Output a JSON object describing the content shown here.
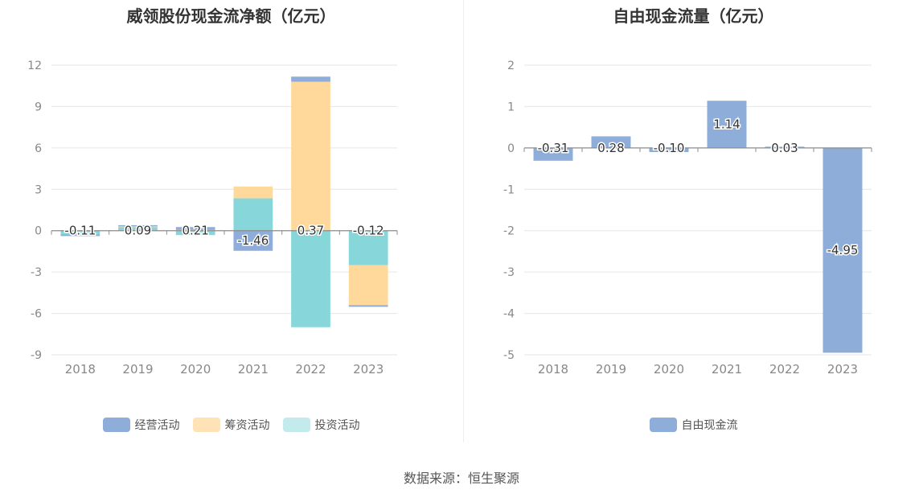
{
  "source": "数据来源：恒生聚源",
  "chart_data": [
    {
      "type": "bar",
      "stacked": true,
      "title": "威领股份现金流净额（亿元）",
      "categories": [
        "2018",
        "2019",
        "2020",
        "2021",
        "2022",
        "2023"
      ],
      "ylim": [
        -9,
        12
      ],
      "yticks": [
        12,
        9,
        6,
        3,
        0,
        -3,
        -6,
        -9
      ],
      "grid": true,
      "legend_position": "bottom",
      "series": [
        {
          "name": "经营活动",
          "color": "#8eadd9",
          "values": [
            -0.11,
            0.09,
            0.21,
            -1.46,
            0.37,
            -0.12
          ],
          "labels": [
            "-0.11",
            "0.09",
            "0.21",
            "-1.46",
            "0.37",
            "-0.12"
          ]
        },
        {
          "name": "筹资活动",
          "color": "#ffd99b",
          "values": [
            0.02,
            0.05,
            0.05,
            0.85,
            10.8,
            -2.9
          ]
        },
        {
          "name": "投资活动",
          "color": "#86d6da",
          "values": [
            -0.28,
            0.26,
            -0.32,
            2.35,
            -7.0,
            -2.5
          ]
        }
      ]
    },
    {
      "type": "bar",
      "title": "自由现金流量（亿元）",
      "categories": [
        "2018",
        "2019",
        "2020",
        "2021",
        "2022",
        "2023"
      ],
      "ylim": [
        -5,
        2
      ],
      "yticks": [
        2,
        1,
        0,
        -1,
        -2,
        -3,
        -4,
        -5
      ],
      "grid": true,
      "legend_position": "bottom",
      "series": [
        {
          "name": "自由现金流",
          "color": "#8eadd9",
          "values": [
            -0.31,
            0.28,
            -0.1,
            1.14,
            0.03,
            -4.95
          ],
          "labels": [
            "-0.31",
            "0.28",
            "-0.10",
            "1.14",
            "0.03",
            "-4.95"
          ]
        }
      ]
    }
  ]
}
